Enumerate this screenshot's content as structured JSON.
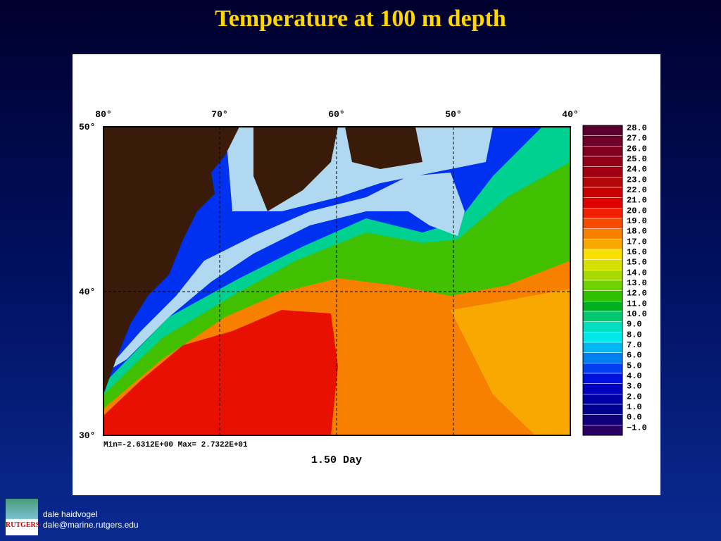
{
  "title": "Temperature at 100 m depth",
  "map": {
    "lon_labels": [
      "80°",
      "70°",
      "60°",
      "50°",
      "40°"
    ],
    "lat_labels": [
      "50°",
      "40°",
      "30°"
    ],
    "stats": "Min=-2.6312E+00  Max= 2.7322E+01",
    "time_label": "1.50 Day",
    "colorbar": {
      "labels": [
        "28.0",
        "27.0",
        "26.0",
        "25.0",
        "24.0",
        "23.0",
        "22.0",
        "21.0",
        "20.0",
        "19.0",
        "18.0",
        "17.0",
        "16.0",
        "15.0",
        "14.0",
        "13.0",
        "12.0",
        "11.0",
        "10.0",
        "9.0",
        "8.0",
        "7.0",
        "6.0",
        "5.0",
        "4.0",
        "3.0",
        "2.0",
        "1.0",
        "0.0",
        "−1.0"
      ],
      "colors": [
        "#5a0030",
        "#6e0028",
        "#800020",
        "#920018",
        "#a00010",
        "#b40808",
        "#c80000",
        "#e00000",
        "#f02000",
        "#f84a00",
        "#f88000",
        "#f8a800",
        "#f8e000",
        "#d8e000",
        "#a8d800",
        "#70d000",
        "#30c000",
        "#00b020",
        "#00c870",
        "#00e0c0",
        "#00e8e8",
        "#00b8f0",
        "#0080f0",
        "#0040f0",
        "#0010e0",
        "#0000c0",
        "#0000a8",
        "#000090",
        "#100078",
        "#280060"
      ]
    }
  },
  "footer": {
    "logo": "RUTGERS",
    "name": "dale haidvogel",
    "email": "dale@marine.rutgers.edu"
  }
}
